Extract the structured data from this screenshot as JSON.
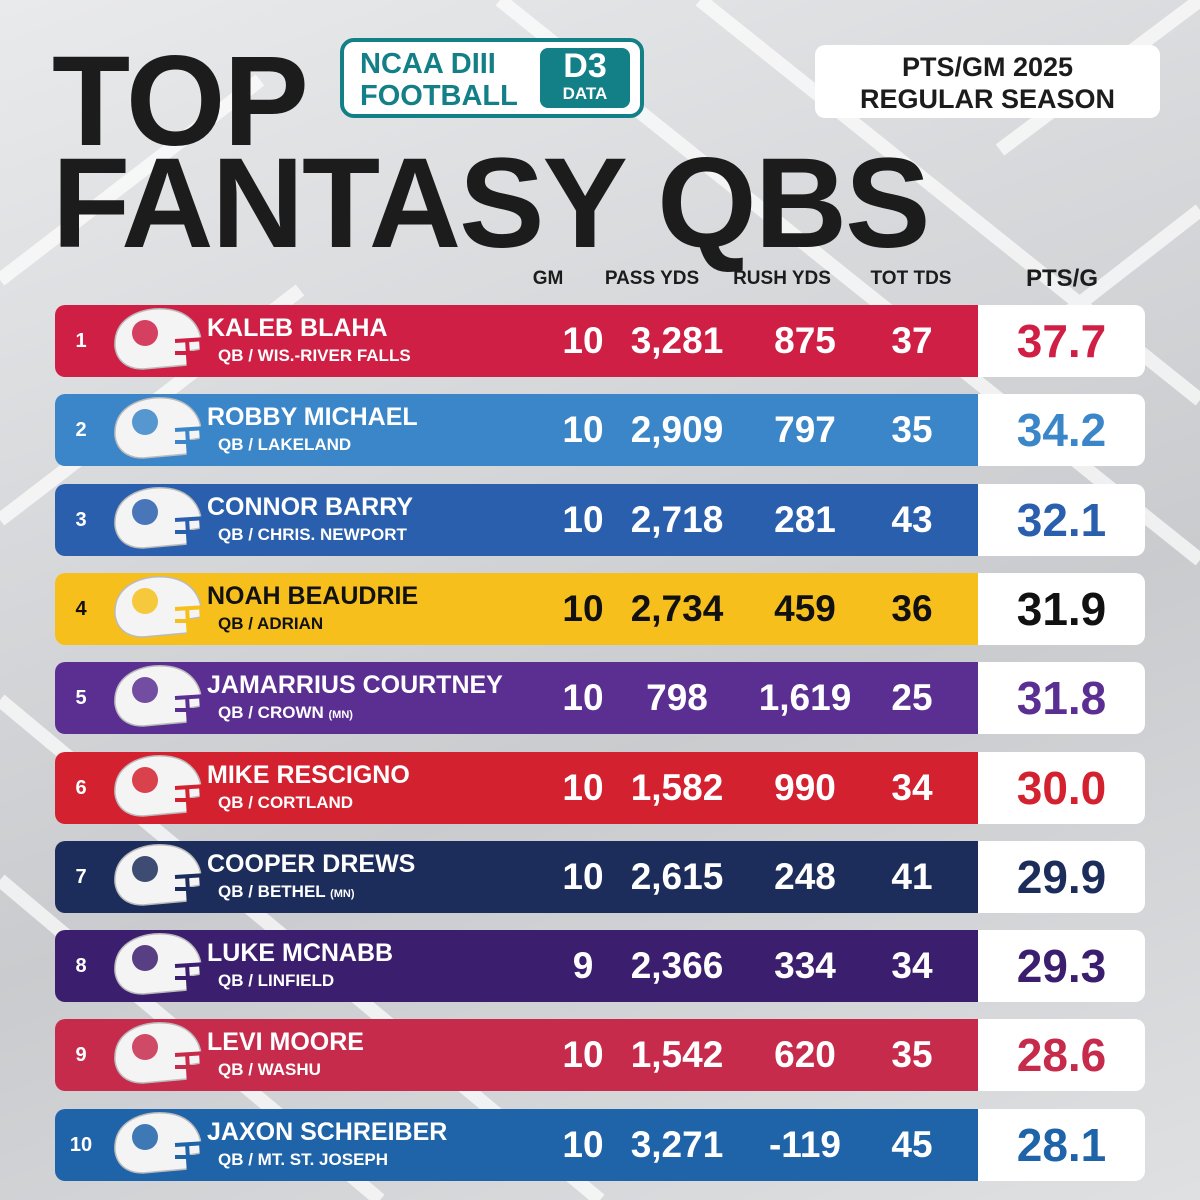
{
  "header": {
    "title_lines": [
      "TOP",
      "FANTASY QBS"
    ],
    "logo": {
      "line1": "NCAA DIII",
      "line2": "FOOTBALL",
      "badge_top": "D3",
      "badge_bottom": "DATA"
    },
    "info": {
      "line1": "PTS/GM 2025",
      "line2": "REGULAR SEASON"
    }
  },
  "table": {
    "columns": {
      "gm": "GM",
      "pass": "PASS YDS",
      "rush": "RUSH YDS",
      "tds": "TOT TDS",
      "pts": "PTS/G"
    },
    "rows": [
      {
        "rank": "1",
        "name": "KALEB BLAHA",
        "team": "QB / WIS.-RIVER FALLS",
        "gm": "10",
        "pass": "3,281",
        "rush": "875",
        "tds": "37",
        "pts": "37.7",
        "color": "#cf1f45",
        "text_color": "#ffffff",
        "pts_color": "#cf1f45"
      },
      {
        "rank": "2",
        "name": "ROBBY MICHAEL",
        "team": "QB / LAKELAND",
        "gm": "10",
        "pass": "2,909",
        "rush": "797",
        "tds": "35",
        "pts": "34.2",
        "color": "#3b86c9",
        "text_color": "#ffffff",
        "pts_color": "#3b86c9"
      },
      {
        "rank": "3",
        "name": "CONNOR BARRY",
        "team": "QB / CHRIS. NEWPORT",
        "gm": "10",
        "pass": "2,718",
        "rush": "281",
        "tds": "43",
        "pts": "32.1",
        "color": "#2a5fae",
        "text_color": "#ffffff",
        "pts_color": "#2a5fae"
      },
      {
        "rank": "4",
        "name": "NOAH BEAUDRIE",
        "team": "QB / ADRIAN",
        "gm": "10",
        "pass": "2,734",
        "rush": "459",
        "tds": "36",
        "pts": "31.9",
        "color": "#f6bf1b",
        "text_color": "#111111",
        "pts_color": "#111111"
      },
      {
        "rank": "5",
        "name": "JAMARRIUS COURTNEY",
        "team": "QB / CROWN",
        "team_note": "(MN)",
        "gm": "10",
        "pass": "798",
        "rush": "1,619",
        "tds": "25",
        "pts": "31.8",
        "color": "#5b2f92",
        "text_color": "#ffffff",
        "pts_color": "#5b2f92"
      },
      {
        "rank": "6",
        "name": "MIKE RESCIGNO",
        "team": "QB / CORTLAND",
        "gm": "10",
        "pass": "1,582",
        "rush": "990",
        "tds": "34",
        "pts": "30.0",
        "color": "#d4212f",
        "text_color": "#ffffff",
        "pts_color": "#d4212f"
      },
      {
        "rank": "7",
        "name": "COOPER DREWS",
        "team": "QB / BETHEL",
        "team_note": "(MN)",
        "gm": "10",
        "pass": "2,615",
        "rush": "248",
        "tds": "41",
        "pts": "29.9",
        "color": "#1d2d5b",
        "text_color": "#ffffff",
        "pts_color": "#1d2d5b"
      },
      {
        "rank": "8",
        "name": "LUKE MCNABB",
        "team": "QB / LINFIELD",
        "gm": "9",
        "pass": "2,366",
        "rush": "334",
        "tds": "34",
        "pts": "29.3",
        "color": "#3c1e6f",
        "text_color": "#ffffff",
        "pts_color": "#3c1e6f"
      },
      {
        "rank": "9",
        "name": "LEVI MOORE",
        "team": "QB / WASHU",
        "gm": "10",
        "pass": "1,542",
        "rush": "620",
        "tds": "35",
        "pts": "28.6",
        "color": "#c72b4c",
        "text_color": "#ffffff",
        "pts_color": "#c72b4c"
      },
      {
        "rank": "10",
        "name": "JAXON SCHREIBER",
        "team": "QB / MT. ST. JOSEPH",
        "gm": "10",
        "pass": "3,271",
        "rush": "-119",
        "tds": "45",
        "pts": "28.1",
        "color": "#1f63a9",
        "text_color": "#ffffff",
        "pts_color": "#1f63a9"
      }
    ]
  }
}
